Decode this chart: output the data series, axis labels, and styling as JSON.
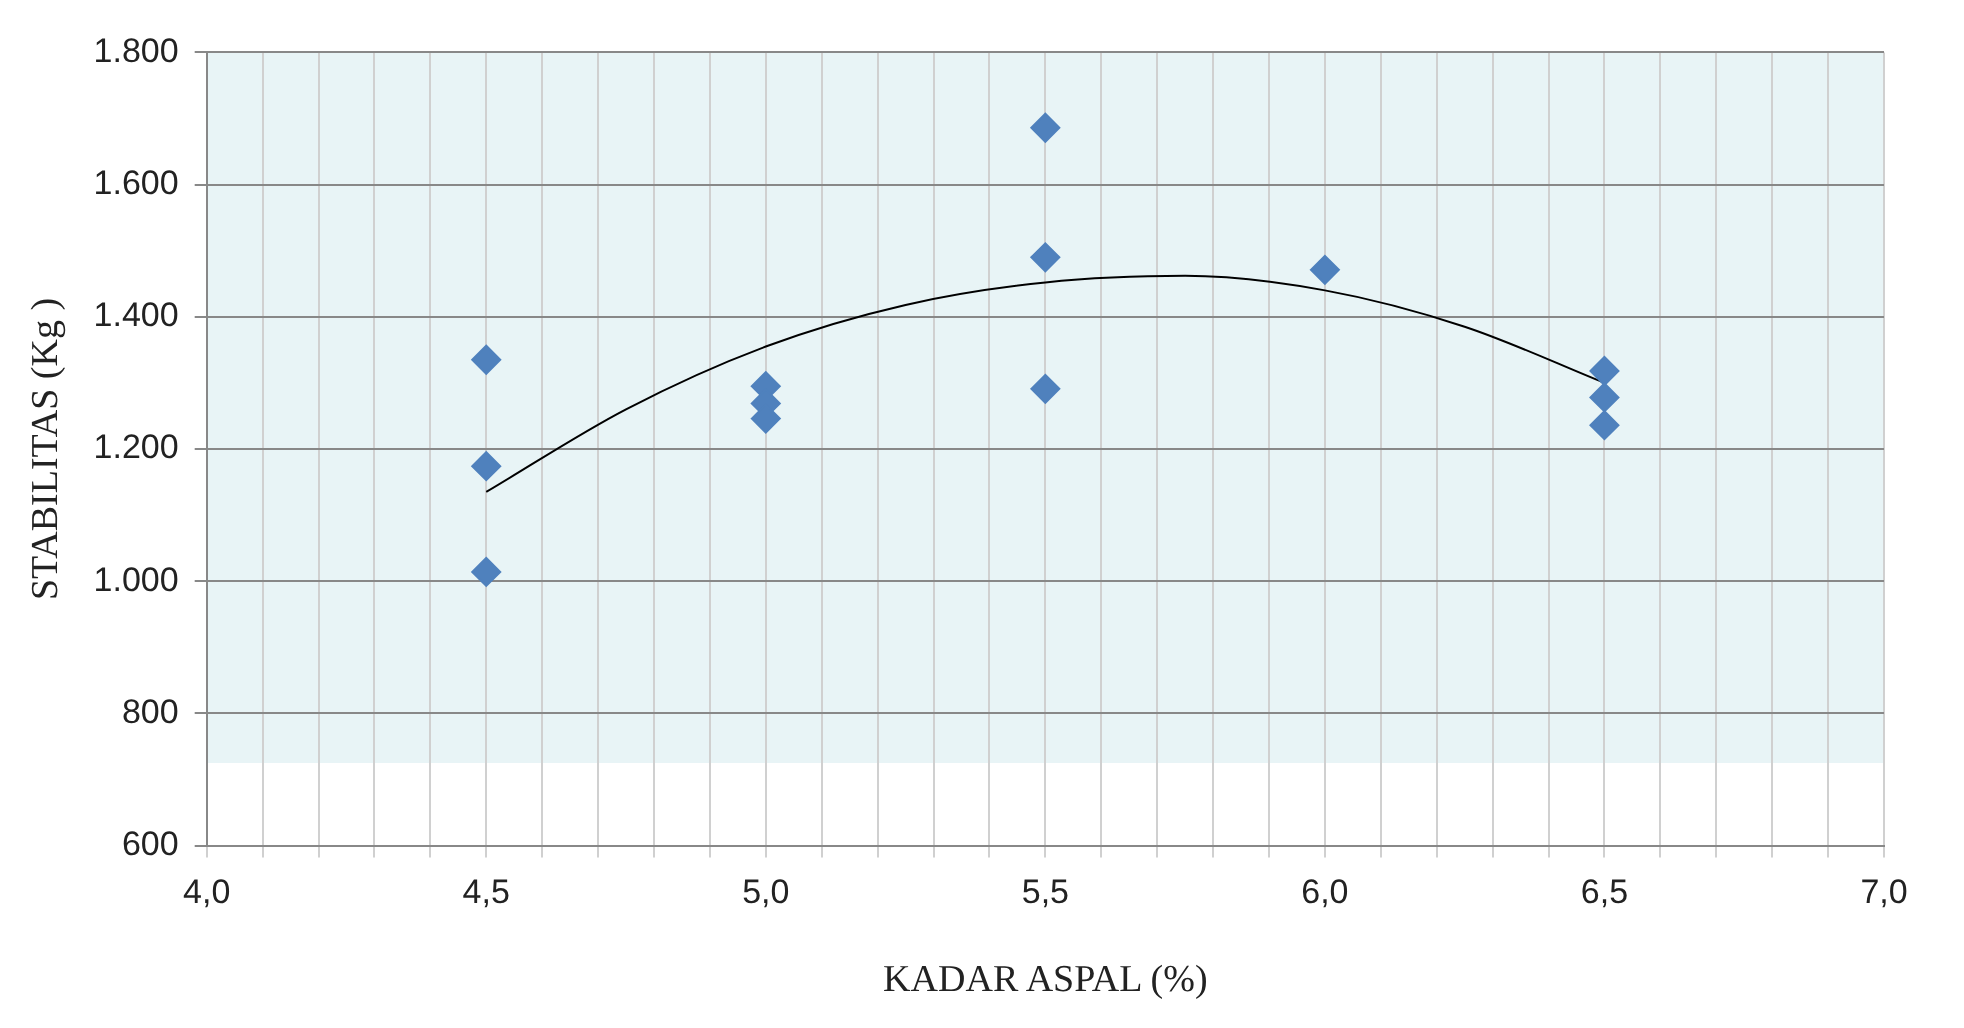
{
  "chart_data": {
    "type": "scatter",
    "xlabel": "KADAR ASPAL (%)",
    "ylabel": "STABILITAS (Kg )",
    "xlim": [
      4.0,
      7.0
    ],
    "ylim": [
      600,
      1800
    ],
    "xticks": [
      {
        "value": 4.0,
        "label": "4,0"
      },
      {
        "value": 4.1,
        "label": null
      },
      {
        "value": 4.2,
        "label": null
      },
      {
        "value": 4.3,
        "label": null
      },
      {
        "value": 4.4,
        "label": null
      },
      {
        "value": 4.5,
        "label": "4,5"
      },
      {
        "value": 4.6,
        "label": null
      },
      {
        "value": 4.7,
        "label": null
      },
      {
        "value": 4.8,
        "label": null
      },
      {
        "value": 4.9,
        "label": null
      },
      {
        "value": 5.0,
        "label": "5,0"
      },
      {
        "value": 5.1,
        "label": null
      },
      {
        "value": 5.2,
        "label": null
      },
      {
        "value": 5.3,
        "label": null
      },
      {
        "value": 5.4,
        "label": null
      },
      {
        "value": 5.5,
        "label": "5,5"
      },
      {
        "value": 5.6,
        "label": null
      },
      {
        "value": 5.7,
        "label": null
      },
      {
        "value": 5.8,
        "label": null
      },
      {
        "value": 5.9,
        "label": null
      },
      {
        "value": 6.0,
        "label": "6,0"
      },
      {
        "value": 6.1,
        "label": null
      },
      {
        "value": 6.2,
        "label": null
      },
      {
        "value": 6.3,
        "label": null
      },
      {
        "value": 6.4,
        "label": null
      },
      {
        "value": 6.5,
        "label": "6,5"
      },
      {
        "value": 6.6,
        "label": null
      },
      {
        "value": 6.7,
        "label": null
      },
      {
        "value": 6.8,
        "label": null
      },
      {
        "value": 6.9,
        "label": null
      },
      {
        "value": 7.0,
        "label": "7,0"
      }
    ],
    "yticks": [
      {
        "value": 600,
        "label": "600"
      },
      {
        "value": 800,
        "label": "800"
      },
      {
        "value": 1000,
        "label": "1.000"
      },
      {
        "value": 1200,
        "label": "1.200"
      },
      {
        "value": 1400,
        "label": "1.400"
      },
      {
        "value": 1600,
        "label": "1.600"
      },
      {
        "value": 1800,
        "label": "1.800"
      }
    ],
    "grid": true,
    "marker": "diamond",
    "legend": false,
    "bands": [
      {
        "axis": "y",
        "from": 725,
        "to": 1800,
        "color": "#e8f4f6"
      }
    ],
    "series": [
      {
        "type": "scatter",
        "color": "#4f81bd",
        "x": [
          4.5,
          4.5,
          4.5,
          5.0,
          5.0,
          5.0,
          5.5,
          5.5,
          5.5,
          6.0,
          6.5,
          6.5,
          6.5
        ],
        "values": [
          1335,
          1174,
          1014,
          1295,
          1269,
          1246,
          1686,
          1490,
          1291,
          1471,
          1318,
          1278,
          1236
        ]
      },
      {
        "type": "line",
        "color": "#000000",
        "marker": "none",
        "x": [
          4.5,
          4.75,
          5.0,
          5.25,
          5.5,
          5.75,
          6.0,
          6.25,
          6.5
        ],
        "values": [
          1135,
          1260,
          1355,
          1418,
          1452,
          1462,
          1440,
          1385,
          1300
        ]
      }
    ]
  }
}
